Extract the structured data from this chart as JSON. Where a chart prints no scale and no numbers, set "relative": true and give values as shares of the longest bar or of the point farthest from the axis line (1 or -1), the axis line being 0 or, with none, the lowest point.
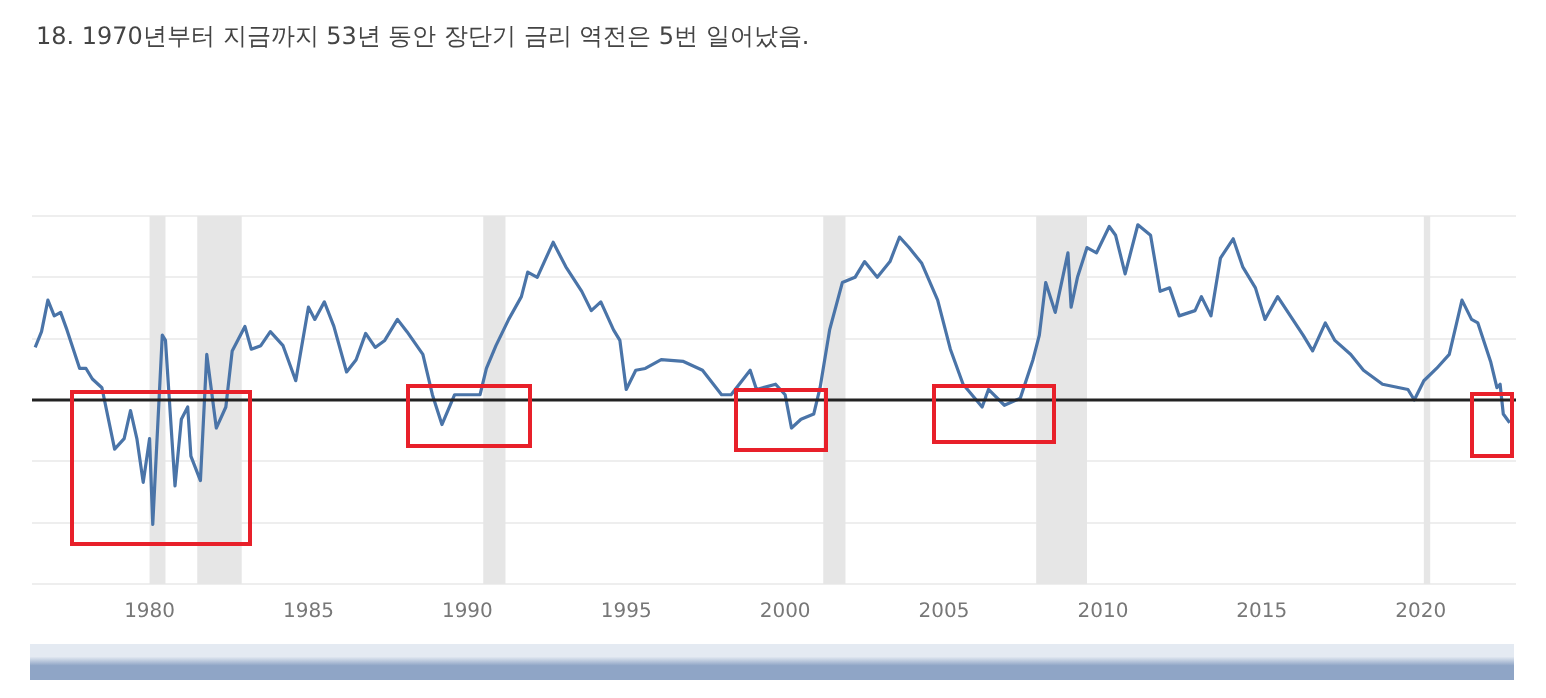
{
  "chart_data": {
    "type": "line",
    "title": "18. 1970년부터 지금까지 53년 동안 장단기 금리 역전은 5번 일어났음.",
    "relative": true,
    "grid": "y",
    "legend": false,
    "marker": "none",
    "line_style": "solid",
    "xlim": [
      1976.3,
      2023.0
    ],
    "xticks": [
      1980,
      1985,
      1990,
      1995,
      2000,
      2005,
      2010,
      2015,
      2020
    ],
    "series": [
      {
        "color": "#4a74a8",
        "x": [
          1976.4,
          1976.6,
          1976.8,
          1977.0,
          1977.2,
          1977.4,
          1977.8,
          1978.0,
          1978.2,
          1978.5,
          1978.9,
          1979.2,
          1979.4,
          1979.6,
          1979.8,
          1980.0,
          1980.1,
          1980.4,
          1980.5,
          1980.8,
          1981.0,
          1981.2,
          1981.3,
          1981.6,
          1981.8,
          1982.1,
          1982.4,
          1982.6,
          1983.0,
          1983.2,
          1983.5,
          1983.8,
          1984.2,
          1984.6,
          1985.0,
          1985.2,
          1985.5,
          1985.8,
          1986.2,
          1986.5,
          1986.8,
          1987.1,
          1987.4,
          1987.8,
          1988.1,
          1988.6,
          1988.9,
          1989.2,
          1989.6,
          1990.0,
          1990.4,
          1990.6,
          1990.9,
          1991.3,
          1991.7,
          1991.9,
          1992.2,
          1992.7,
          1993.1,
          1993.6,
          1993.9,
          1994.2,
          1994.6,
          1994.8,
          1995.0,
          1995.3,
          1995.6,
          1996.1,
          1996.8,
          1997.4,
          1998.0,
          1998.3,
          1998.9,
          1999.1,
          1999.7,
          2000.0,
          2000.2,
          2000.5,
          2000.9,
          2001.1,
          2001.4,
          2001.8,
          2002.2,
          2002.5,
          2002.9,
          2003.3,
          2003.6,
          2003.9,
          2004.3,
          2004.8,
          2005.2,
          2005.6,
          2006.2,
          2006.4,
          2006.9,
          2007.4,
          2007.8,
          2008.0,
          2008.2,
          2008.5,
          2008.9,
          2009.0,
          2009.2,
          2009.5,
          2009.8,
          2010.2,
          2010.4,
          2010.7,
          2011.1,
          2011.5,
          2011.8,
          2012.1,
          2012.4,
          2012.9,
          2013.1,
          2013.4,
          2013.7,
          2014.1,
          2014.4,
          2014.8,
          2015.1,
          2015.5,
          2015.9,
          2016.3,
          2016.6,
          2017.0,
          2017.3,
          2017.8,
          2018.2,
          2018.8,
          2019.6,
          2019.8,
          2020.1,
          2020.5,
          2020.9,
          2021.3,
          2021.6,
          2021.8,
          2022.2,
          2022.4,
          2022.5,
          2022.6,
          2022.8
        ],
        "values": [
          0.3,
          0.39,
          0.57,
          0.48,
          0.5,
          0.4,
          0.18,
          0.18,
          0.12,
          0.07,
          -0.28,
          -0.22,
          -0.06,
          -0.22,
          -0.47,
          -0.22,
          -0.71,
          0.37,
          0.34,
          -0.49,
          -0.11,
          -0.04,
          -0.32,
          -0.46,
          0.26,
          -0.16,
          -0.04,
          0.28,
          0.42,
          0.29,
          0.31,
          0.39,
          0.31,
          0.11,
          0.53,
          0.46,
          0.56,
          0.42,
          0.16,
          0.23,
          0.38,
          0.3,
          0.34,
          0.46,
          0.39,
          0.26,
          0.03,
          -0.14,
          0.03,
          0.03,
          0.03,
          0.18,
          0.31,
          0.46,
          0.59,
          0.73,
          0.7,
          0.9,
          0.76,
          0.62,
          0.51,
          0.56,
          0.4,
          0.34,
          0.06,
          0.17,
          0.18,
          0.23,
          0.22,
          0.17,
          0.03,
          0.03,
          0.17,
          0.06,
          0.09,
          0.03,
          -0.16,
          -0.11,
          -0.08,
          0.07,
          0.4,
          0.67,
          0.7,
          0.79,
          0.7,
          0.79,
          0.93,
          0.87,
          0.78,
          0.57,
          0.29,
          0.09,
          -0.04,
          0.06,
          -0.03,
          0.01,
          0.23,
          0.37,
          0.67,
          0.5,
          0.84,
          0.53,
          0.7,
          0.87,
          0.84,
          0.99,
          0.94,
          0.72,
          1.0,
          0.94,
          0.62,
          0.64,
          0.48,
          0.51,
          0.59,
          0.48,
          0.81,
          0.92,
          0.76,
          0.64,
          0.46,
          0.59,
          0.48,
          0.37,
          0.28,
          0.44,
          0.34,
          0.26,
          0.17,
          0.09,
          0.06,
          0.0,
          0.11,
          0.18,
          0.26,
          0.57,
          0.46,
          0.44,
          0.22,
          0.07,
          0.09,
          -0.08,
          -0.13
        ]
      }
    ],
    "bands": [
      {
        "axis": "x",
        "from": 1980.0,
        "to": 1980.5,
        "color": "#e6e6e6"
      },
      {
        "axis": "x",
        "from": 1981.5,
        "to": 1982.9,
        "color": "#e6e6e6"
      },
      {
        "axis": "x",
        "from": 1990.5,
        "to": 1991.2,
        "color": "#e6e6e6"
      },
      {
        "axis": "x",
        "from": 2001.2,
        "to": 2001.9,
        "color": "#e6e6e6"
      },
      {
        "axis": "x",
        "from": 2007.9,
        "to": 2009.5,
        "color": "#e6e6e6"
      },
      {
        "axis": "x",
        "from": 2020.1,
        "to": 2020.3,
        "color": "#e6e6e6"
      }
    ]
  }
}
